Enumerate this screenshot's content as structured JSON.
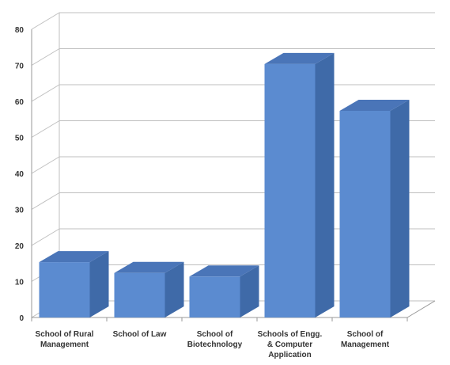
{
  "chart_data": {
    "type": "bar",
    "style": "3d-column",
    "title": "",
    "xlabel": "",
    "ylabel": "",
    "ylim": [
      0,
      80
    ],
    "yticks": [
      0,
      10,
      20,
      30,
      40,
      50,
      60,
      70,
      80
    ],
    "grid": true,
    "legend": "none",
    "categories": [
      [
        "School of Rural",
        "Management"
      ],
      [
        "School of Law"
      ],
      [
        "School of",
        "Biotechnology"
      ],
      [
        "Schools of Engg.",
        "& Computer",
        "Application"
      ],
      [
        "School of",
        "Management"
      ]
    ],
    "values": [
      18,
      15,
      14,
      73,
      60
    ],
    "colors": {
      "bar_front": "#5b8bd0",
      "bar_side": "#3f6aa8",
      "bar_top": "#4a75b8",
      "grid": "#bfbfbf",
      "axis": "#999999"
    }
  }
}
